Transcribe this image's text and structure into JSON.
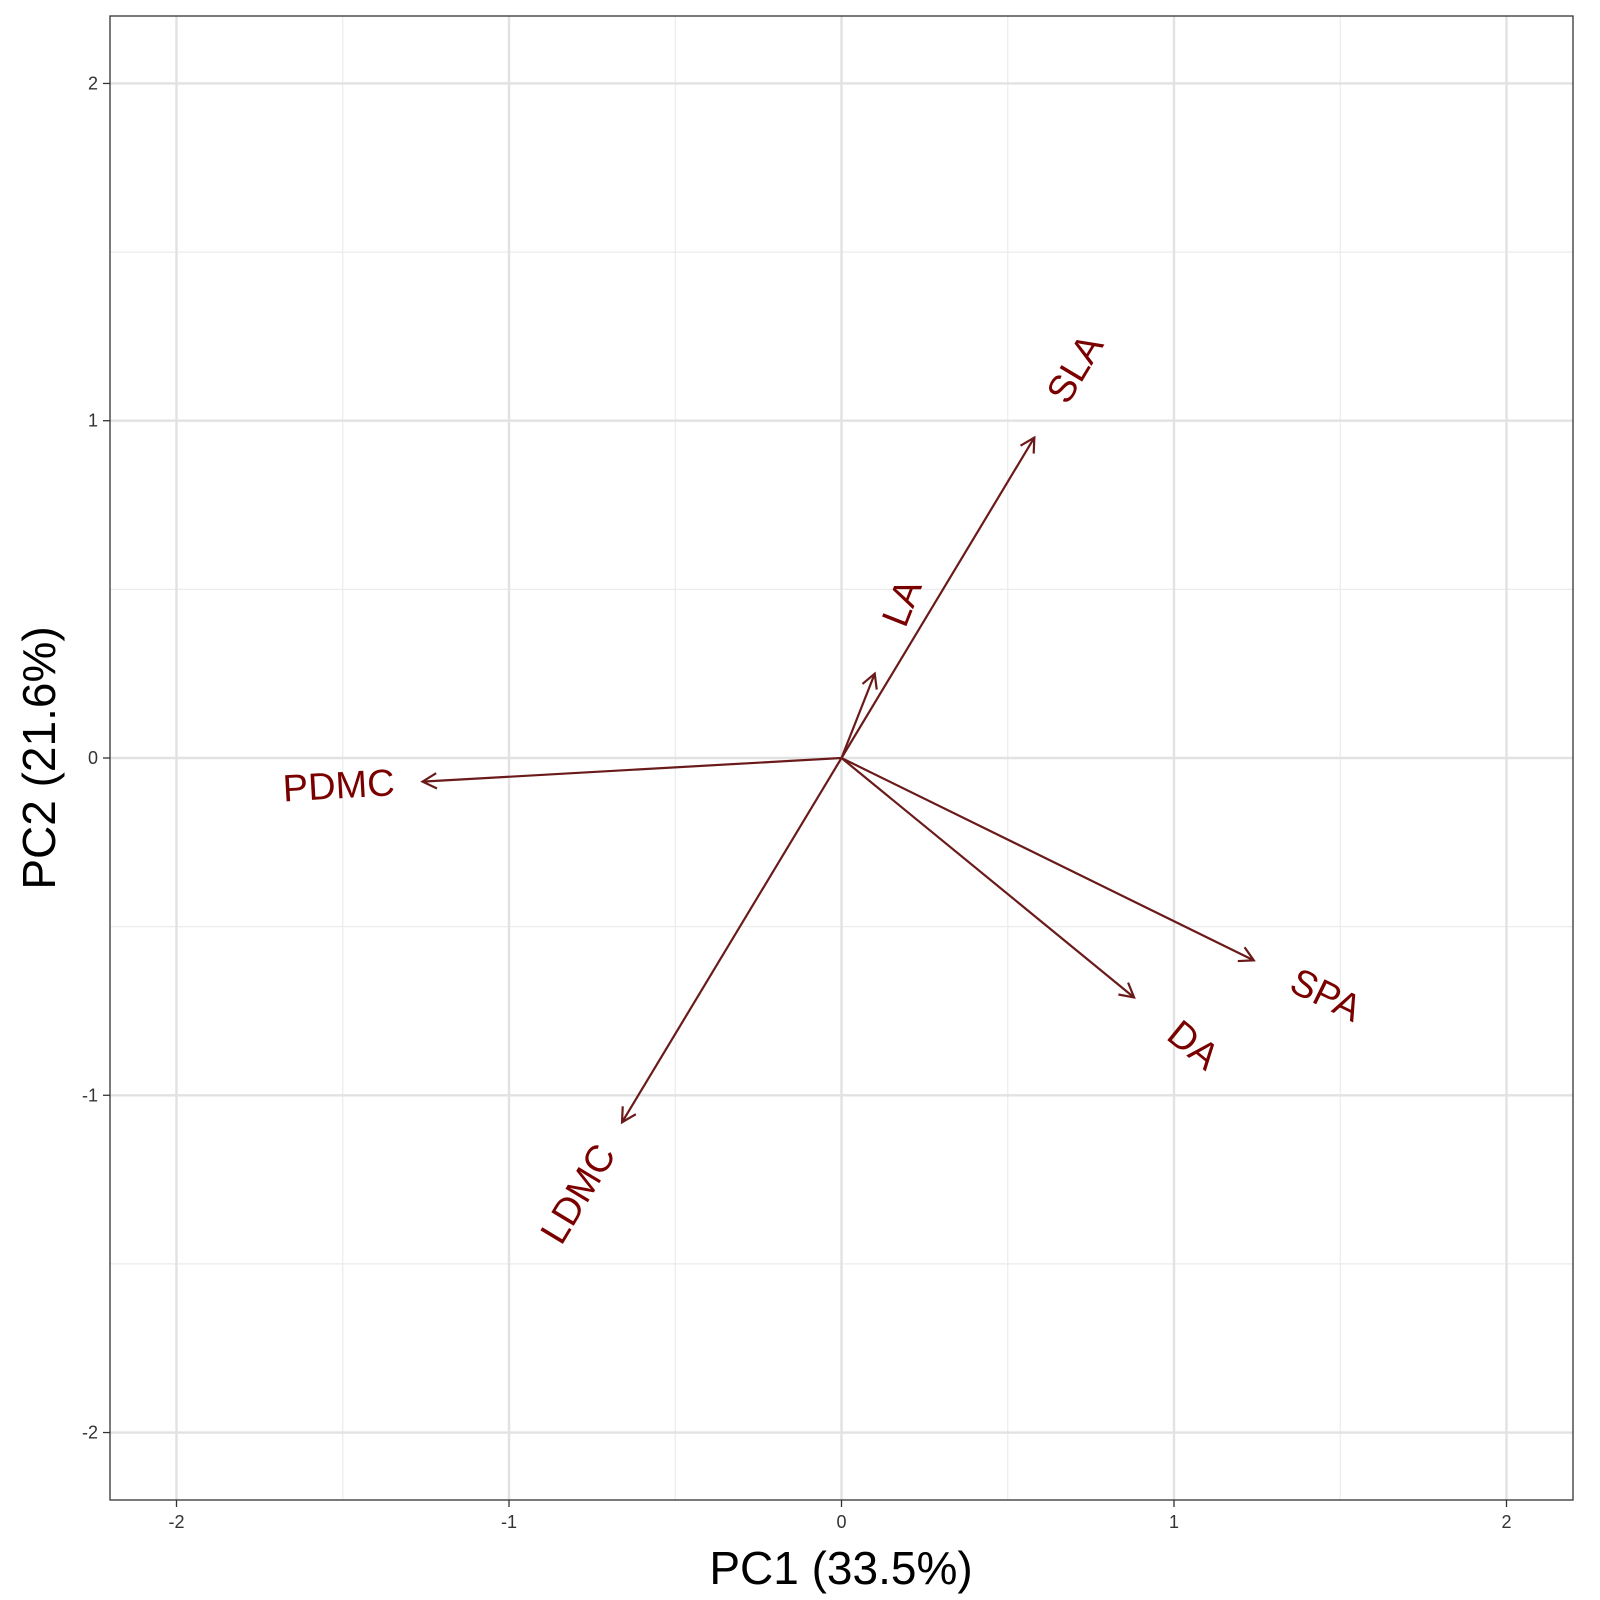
{
  "chart_data": {
    "type": "biplot",
    "xlabel": "PC1 (33.5%)",
    "ylabel": "PC2 (21.6%)",
    "xlim": [
      -2.2,
      2.2
    ],
    "ylim": [
      -2.2,
      2.2
    ],
    "x_ticks": [
      -2,
      -1,
      0,
      1,
      2
    ],
    "y_ticks": [
      -2,
      -1,
      0,
      1,
      2
    ],
    "x_tick_labels": [
      "-2",
      "-1",
      "0",
      "1",
      "2"
    ],
    "y_tick_labels": [
      "-2",
      "-1",
      "0",
      "1",
      "2"
    ],
    "grid": true,
    "arrow_color": "#6b1a1a",
    "label_color": "#7a0000",
    "vectors": [
      {
        "label": "SLA",
        "x": 0.58,
        "y": 0.95
      },
      {
        "label": "LA",
        "x": 0.1,
        "y": 0.25
      },
      {
        "label": "PDMC",
        "x": -1.26,
        "y": -0.07
      },
      {
        "label": "SPA",
        "x": 1.24,
        "y": -0.6
      },
      {
        "label": "DA",
        "x": 0.88,
        "y": -0.71
      },
      {
        "label": "LDMC",
        "x": -0.66,
        "y": -1.08
      }
    ]
  }
}
